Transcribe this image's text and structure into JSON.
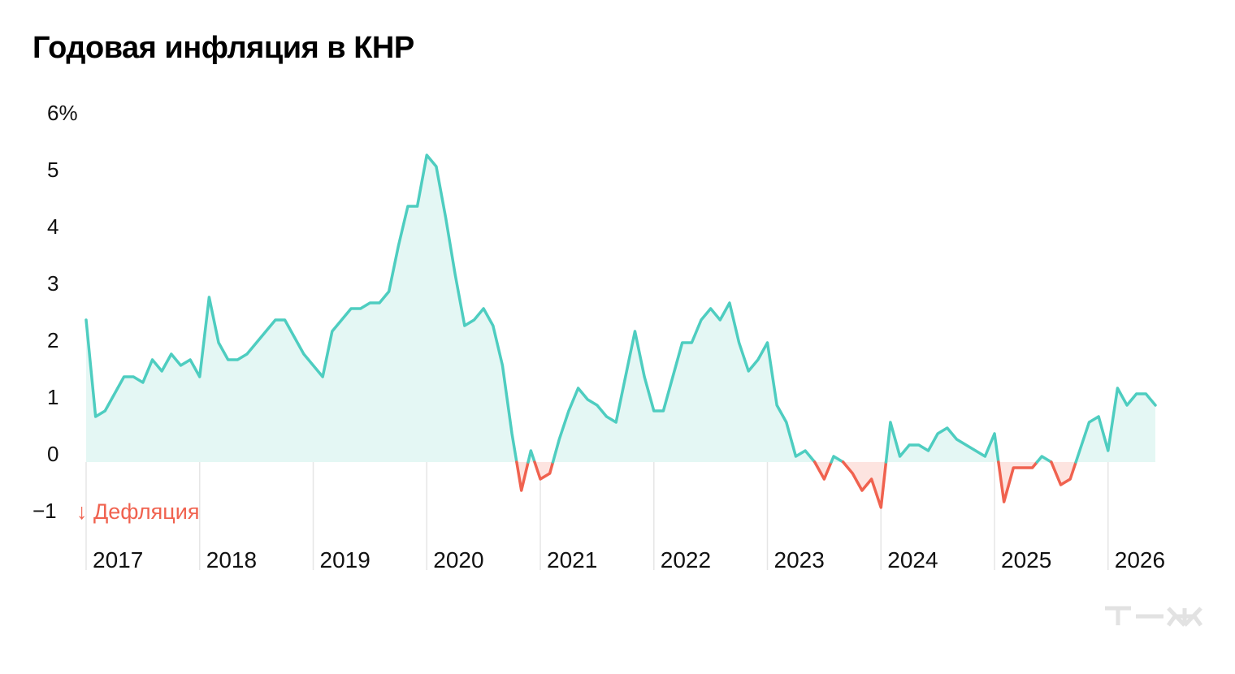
{
  "title": "Годовая инфляция в КНР",
  "chart_data": {
    "type": "area",
    "title": "Годовая инфляция в КНР",
    "xlabel": "",
    "ylabel": "",
    "y_ticks": [
      "6%",
      "5",
      "4",
      "3",
      "2",
      "1",
      "0",
      "−1"
    ],
    "y_tick_values": [
      6,
      5,
      4,
      3,
      2,
      1,
      0,
      -1
    ],
    "ylim": [
      -1.4,
      6.2
    ],
    "x_ticks": [
      "2017",
      "2018",
      "2019",
      "2020",
      "2021",
      "2022",
      "2023",
      "2024",
      "2025",
      "2026"
    ],
    "x_tick_years": [
      2017,
      2018,
      2019,
      2020,
      2021,
      2022,
      2023,
      2024,
      2025,
      2026
    ],
    "grid": "vertical lines at each year start",
    "annotation": "↓ Дефляция",
    "colors": {
      "positive": "#4ecdc0",
      "negative": "#f0624f",
      "positive_fill": "#e4f7f4",
      "negative_fill": "#fde4e0"
    },
    "series": [
      {
        "frequency": "monthly",
        "start": "2017-01",
        "values": [
          2.5,
          0.8,
          0.9,
          1.2,
          1.5,
          1.5,
          1.4,
          1.8,
          1.6,
          1.9,
          1.7,
          1.8,
          1.5,
          2.9,
          2.1,
          1.8,
          1.8,
          1.9,
          2.1,
          2.3,
          2.5,
          2.5,
          2.2,
          1.9,
          1.7,
          1.5,
          2.3,
          2.5,
          2.7,
          2.7,
          2.8,
          2.8,
          3.0,
          3.8,
          4.5,
          4.5,
          5.4,
          5.2,
          4.3,
          3.3,
          2.4,
          2.5,
          2.7,
          2.4,
          1.7,
          0.5,
          -0.5,
          0.2,
          -0.3,
          -0.2,
          0.4,
          0.9,
          1.3,
          1.1,
          1.0,
          0.8,
          0.7,
          1.5,
          2.3,
          1.5,
          0.9,
          0.9,
          1.5,
          2.1,
          2.1,
          2.5,
          2.7,
          2.5,
          2.8,
          2.1,
          1.6,
          1.8,
          2.1,
          1.0,
          0.7,
          0.1,
          0.2,
          0.0,
          -0.3,
          0.1,
          0.0,
          -0.2,
          -0.5,
          -0.3,
          -0.8,
          0.7,
          0.1,
          0.3,
          0.3,
          0.2,
          0.5,
          0.6,
          0.4,
          0.3,
          0.2,
          0.1,
          0.5,
          -0.7,
          -0.1,
          -0.1,
          -0.1,
          0.1,
          0.0,
          -0.4,
          -0.3,
          0.2,
          0.7,
          0.8,
          0.2,
          1.3,
          1.0,
          1.2,
          1.2,
          1.0
        ]
      }
    ]
  },
  "logo": {
    "text": "т—ж",
    "color": "#e2e2e2"
  }
}
